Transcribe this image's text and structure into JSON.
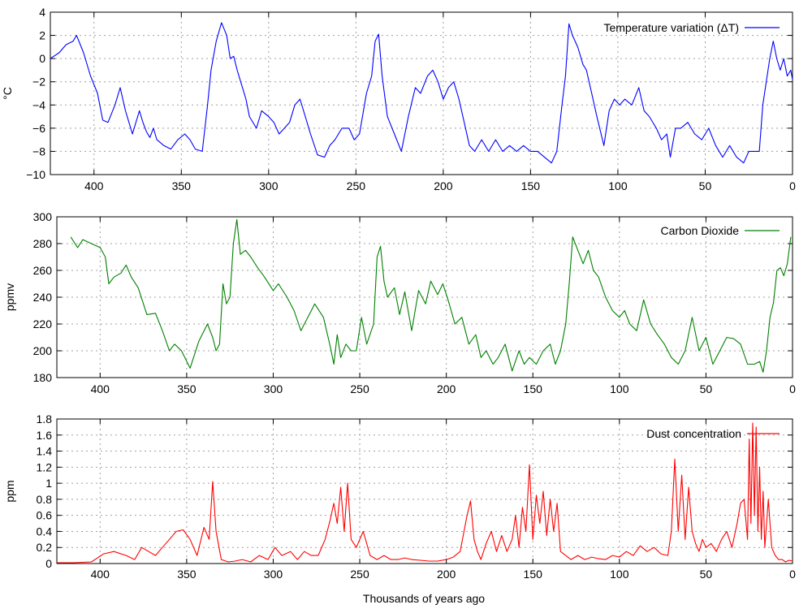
{
  "x_axis_label": "Thousands of years ago",
  "chart_data": [
    {
      "type": "line",
      "ylabel": "°C",
      "xlim": [
        425,
        0
      ],
      "ylim": [
        -10,
        4
      ],
      "x_ticks": [
        400,
        350,
        300,
        250,
        200,
        150,
        100,
        50,
        0
      ],
      "y_ticks": [
        -10,
        -8,
        -6,
        -4,
        -2,
        0,
        2,
        4
      ],
      "y_tick_labels": [
        "−10",
        "−8",
        "−6",
        "−4",
        "−2",
        "0",
        "2",
        "4"
      ],
      "grid": true,
      "legend_position": "top-right",
      "series": [
        {
          "name": "Temperature variation (ΔT)",
          "color": "#0000ff",
          "x": [
            425,
            420,
            416,
            412,
            410,
            406,
            402,
            398,
            395,
            392,
            388,
            385,
            382,
            380,
            378,
            374,
            372,
            370,
            368,
            366,
            364,
            360,
            356,
            352,
            348,
            345,
            342,
            338,
            335,
            333,
            330,
            327,
            324,
            322,
            320,
            318,
            316,
            313,
            311,
            307,
            304,
            300,
            297,
            294,
            291,
            288,
            285,
            282,
            279,
            276,
            272,
            268,
            265,
            262,
            258,
            254,
            251,
            248,
            244,
            241,
            239,
            237,
            235,
            232,
            228,
            224,
            220,
            216,
            213,
            209,
            206,
            203,
            200,
            197,
            194,
            191,
            188,
            185,
            182,
            178,
            174,
            170,
            166,
            162,
            158,
            154,
            150,
            146,
            142,
            138,
            135,
            132,
            130,
            128,
            126,
            123,
            120,
            118,
            115,
            112,
            108,
            105,
            102,
            99,
            96,
            92,
            88,
            85,
            82,
            78,
            75,
            72,
            70,
            67,
            64,
            60,
            56,
            52,
            48,
            44,
            40,
            36,
            32,
            28,
            25,
            22,
            19,
            17,
            15,
            13,
            11,
            9,
            7,
            5,
            3,
            1,
            0
          ],
          "values": [
            0,
            0.5,
            1.2,
            1.5,
            2,
            0.5,
            -1.5,
            -3,
            -5.3,
            -5.5,
            -4,
            -2.5,
            -4.5,
            -5.5,
            -6.5,
            -4.5,
            -5.5,
            -6.3,
            -6.8,
            -6,
            -7,
            -7.5,
            -7.8,
            -7,
            -6.5,
            -7,
            -7.8,
            -8,
            -4,
            -1,
            1.5,
            3.1,
            2,
            0,
            0.2,
            -1,
            -2,
            -3.5,
            -5,
            -6,
            -4.5,
            -5,
            -5.5,
            -6.5,
            -6,
            -5.5,
            -4,
            -3.5,
            -5,
            -6.5,
            -8.3,
            -8.5,
            -7.5,
            -7,
            -6,
            -6,
            -7,
            -6.5,
            -3,
            -1.5,
            1.5,
            2.1,
            -1.5,
            -5,
            -6.5,
            -8,
            -5,
            -2.5,
            -3,
            -1.5,
            -1,
            -2,
            -3.5,
            -2.5,
            -2,
            -3.5,
            -5.5,
            -7.5,
            -8,
            -7,
            -8,
            -7,
            -8,
            -7.5,
            -8,
            -7.5,
            -8,
            -8,
            -8.5,
            -9,
            -8,
            -4,
            -1.5,
            3,
            2,
            1,
            -0.5,
            -1,
            -3,
            -5,
            -7.5,
            -4.5,
            -3.5,
            -4,
            -3.5,
            -4,
            -2.5,
            -4.5,
            -5,
            -6,
            -7,
            -6.5,
            -8.5,
            -6,
            -6,
            -5.5,
            -6.5,
            -7,
            -6,
            -7.5,
            -8.5,
            -7.5,
            -8.5,
            -9,
            -8,
            -8,
            -8,
            -4,
            -2,
            0,
            1.5,
            0,
            -1,
            0,
            -1.5,
            -1,
            -1.8
          ]
        }
      ]
    },
    {
      "type": "line",
      "ylabel": "ppmv",
      "xlim": [
        425,
        0
      ],
      "ylim": [
        180,
        300
      ],
      "x_ticks": [
        400,
        350,
        300,
        250,
        200,
        150,
        100,
        50,
        0
      ],
      "y_ticks": [
        180,
        200,
        220,
        240,
        260,
        280,
        300
      ],
      "y_tick_labels": [
        "180",
        "200",
        "220",
        "240",
        "260",
        "280",
        "300"
      ],
      "grid": true,
      "legend_position": "top-right",
      "series": [
        {
          "name": "Carbon Dioxide",
          "color": "#008000",
          "x": [
            417,
            413,
            410,
            405,
            400,
            397,
            395,
            392,
            388,
            385,
            382,
            378,
            373,
            368,
            364,
            360,
            357,
            353,
            348,
            343,
            338,
            335,
            333,
            331,
            329,
            327,
            325,
            323,
            321,
            319,
            316,
            313,
            309,
            305,
            300,
            297,
            292,
            288,
            284,
            280,
            276,
            271,
            267,
            265,
            263,
            261,
            258,
            255,
            252,
            249,
            246,
            242,
            240,
            238,
            236,
            234,
            230,
            227,
            224,
            220,
            216,
            212,
            209,
            205,
            202,
            199,
            195,
            191,
            187,
            183,
            180,
            177,
            173,
            170,
            166,
            162,
            158,
            155,
            152,
            148,
            144,
            140,
            137,
            134,
            131,
            129,
            127,
            124,
            121,
            118,
            115,
            112,
            108,
            104,
            100,
            97,
            94,
            90,
            86,
            82,
            78,
            74,
            70,
            66,
            62,
            58,
            54,
            50,
            46,
            42,
            38,
            34,
            30,
            26,
            22,
            19,
            17,
            15,
            13,
            11,
            9,
            7,
            5,
            3,
            1
          ],
          "values": [
            285,
            277,
            283,
            280,
            277,
            270,
            250,
            255,
            258,
            264,
            255,
            247,
            227,
            228,
            215,
            200,
            205,
            200,
            187,
            207,
            220,
            210,
            200,
            205,
            250,
            235,
            240,
            280,
            298,
            272,
            275,
            270,
            262,
            255,
            245,
            250,
            240,
            230,
            215,
            225,
            235,
            225,
            203,
            190,
            212,
            195,
            205,
            200,
            200,
            225,
            205,
            220,
            270,
            278,
            252,
            240,
            247,
            227,
            244,
            215,
            245,
            235,
            252,
            242,
            250,
            238,
            220,
            225,
            205,
            212,
            195,
            200,
            190,
            195,
            205,
            185,
            200,
            190,
            195,
            190,
            200,
            205,
            190,
            200,
            220,
            250,
            285,
            275,
            265,
            275,
            260,
            255,
            240,
            230,
            225,
            230,
            220,
            215,
            238,
            220,
            212,
            205,
            195,
            190,
            200,
            225,
            200,
            210,
            190,
            200,
            210,
            209,
            205,
            190,
            190,
            192,
            184,
            200,
            225,
            236,
            260,
            262,
            256,
            265,
            285
          ]
        }
      ]
    },
    {
      "type": "line",
      "ylabel": "ppm",
      "xlim": [
        425,
        0
      ],
      "ylim": [
        0,
        1.8
      ],
      "x_ticks": [
        400,
        350,
        300,
        250,
        200,
        150,
        100,
        50,
        0
      ],
      "y_ticks": [
        0,
        0.2,
        0.4,
        0.6,
        0.8,
        1,
        1.2,
        1.4,
        1.6,
        1.8
      ],
      "y_tick_labels": [
        "0",
        "0.2",
        "0.4",
        "0.6",
        "0.8",
        "1",
        "1.2",
        "1.4",
        "1.6",
        "1.8"
      ],
      "grid": true,
      "legend_position": "top-right",
      "series": [
        {
          "name": "Dust concentration",
          "color": "#ff0000",
          "x": [
            425,
            415,
            405,
            398,
            392,
            385,
            380,
            376,
            372,
            368,
            364,
            360,
            356,
            352,
            348,
            344,
            340,
            337,
            335,
            333,
            330,
            326,
            322,
            318,
            313,
            308,
            303,
            299,
            295,
            290,
            286,
            282,
            278,
            274,
            270,
            267,
            265,
            263,
            261,
            259,
            257,
            255,
            252,
            248,
            244,
            240,
            236,
            232,
            228,
            224,
            220,
            215,
            210,
            205,
            200,
            196,
            192,
            188,
            186,
            184,
            182,
            180,
            177,
            174,
            171,
            168,
            165,
            162,
            160,
            158,
            156,
            154,
            152,
            150,
            148,
            146,
            144,
            142,
            140,
            138,
            136,
            134,
            131,
            128,
            124,
            120,
            116,
            112,
            108,
            104,
            100,
            96,
            92,
            88,
            84,
            80,
            76,
            72,
            70,
            68,
            66,
            64,
            62,
            60,
            58,
            56,
            54,
            52,
            50,
            47,
            44,
            41,
            38,
            35,
            32,
            30,
            28,
            26,
            25,
            24,
            23,
            22,
            21,
            20,
            19,
            18,
            17,
            16,
            14,
            12,
            10,
            8,
            6,
            4,
            2,
            0
          ],
          "values": [
            0.01,
            0.01,
            0.02,
            0.12,
            0.15,
            0.1,
            0.05,
            0.2,
            0.15,
            0.1,
            0.2,
            0.3,
            0.4,
            0.42,
            0.3,
            0.1,
            0.45,
            0.3,
            1.02,
            0.4,
            0.05,
            0.02,
            0.03,
            0.05,
            0.02,
            0.1,
            0.05,
            0.2,
            0.1,
            0.15,
            0.05,
            0.15,
            0.1,
            0.1,
            0.3,
            0.55,
            0.75,
            0.5,
            0.95,
            0.4,
            1.0,
            0.3,
            0.2,
            0.4,
            0.1,
            0.05,
            0.1,
            0.05,
            0.05,
            0.07,
            0.05,
            0.04,
            0.03,
            0.03,
            0.05,
            0.08,
            0.15,
            0.6,
            0.78,
            0.3,
            0.15,
            0.05,
            0.25,
            0.4,
            0.15,
            0.35,
            0.15,
            0.3,
            0.6,
            0.2,
            0.7,
            0.4,
            1.23,
            0.3,
            0.85,
            0.5,
            0.9,
            0.35,
            0.8,
            0.4,
            0.75,
            0.15,
            0.1,
            0.05,
            0.1,
            0.05,
            0.08,
            0.06,
            0.05,
            0.1,
            0.08,
            0.15,
            0.1,
            0.22,
            0.15,
            0.2,
            0.12,
            0.1,
            0.4,
            1.3,
            0.4,
            1.1,
            0.3,
            0.95,
            0.4,
            0.25,
            0.15,
            0.3,
            0.2,
            0.25,
            0.15,
            0.3,
            0.4,
            0.2,
            0.5,
            0.75,
            0.8,
            0.3,
            1.55,
            0.5,
            1.75,
            0.6,
            1.7,
            0.4,
            1.2,
            0.3,
            0.9,
            0.2,
            0.8,
            0.2,
            0.1,
            0.05,
            0.05,
            0.02,
            0.04,
            0.03
          ]
        }
      ]
    }
  ]
}
